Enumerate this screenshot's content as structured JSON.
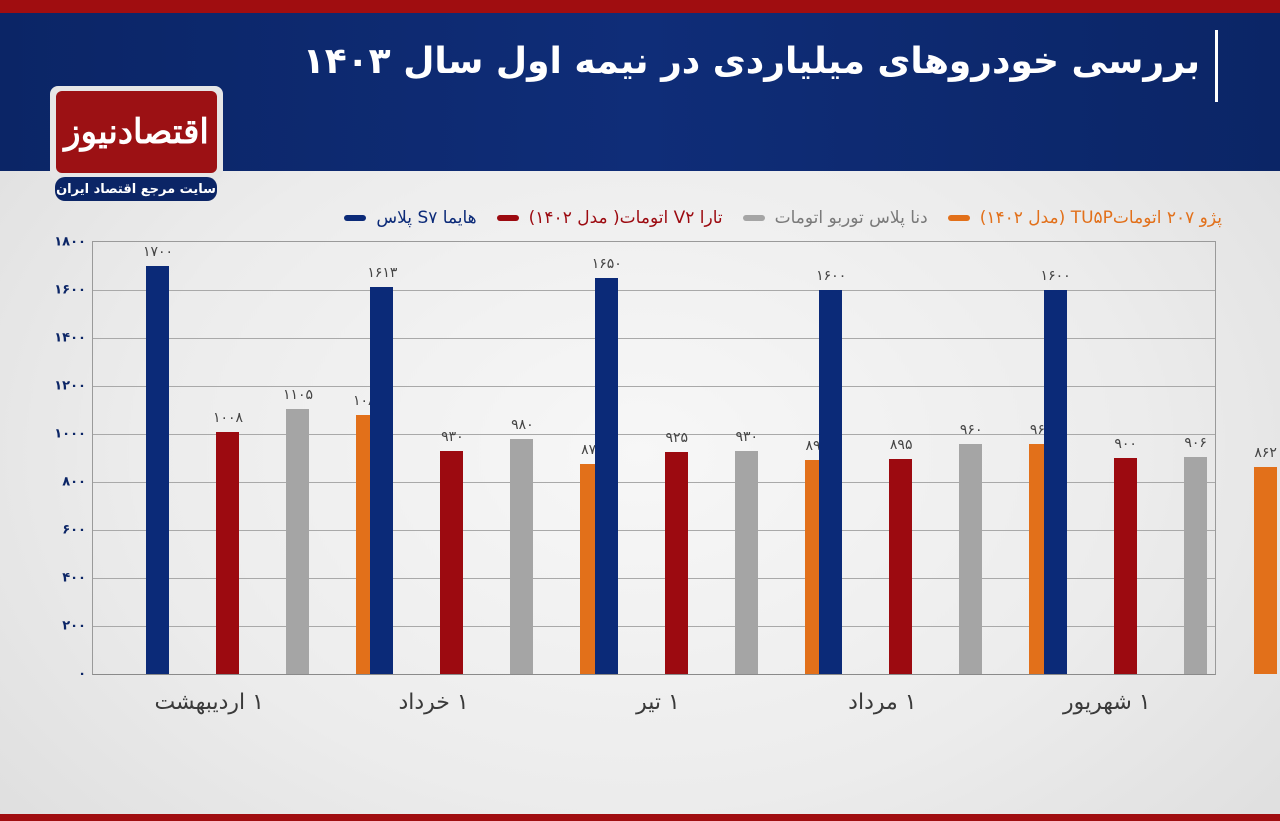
{
  "header": {
    "title": "بررسی خودروهای میلیاردی در نیمه اول سال ۱۴۰۳"
  },
  "logo": {
    "name": "اقتصادنیوز",
    "tagline": "سایت مرجع اقتصاد ایران"
  },
  "colors": {
    "header_bg": "#0f2d78",
    "accent_red": "#a00d10",
    "series": [
      "#0b2a78",
      "#9c0a10",
      "#a5a5a5",
      "#e2701a"
    ]
  },
  "chart_data": {
    "type": "bar",
    "title": "بررسی خودروهای میلیاردی در نیمه اول سال ۱۴۰۳",
    "xlabel": "",
    "ylabel": "",
    "categories": [
      "۱ اردیبهشت",
      "۱ خرداد",
      "۱ تیر",
      "۱ مرداد",
      "۱ شهریور"
    ],
    "series": [
      {
        "name": "هایما S۷ پلاس",
        "color": "#0b2a78",
        "values": [
          1700,
          1613,
          1650,
          1600,
          1600
        ],
        "labels": [
          "۱۷۰۰",
          "۱۶۱۳",
          "۱۶۵۰",
          "۱۶۰۰",
          "۱۶۰۰"
        ]
      },
      {
        "name": "تارا V۲ اتومات( مدل ۱۴۰۲)",
        "color": "#9c0a10",
        "values": [
          1008,
          930,
          925,
          895,
          900
        ],
        "labels": [
          "۱۰۰۸",
          "۹۳۰",
          "۹۲۵",
          "۸۹۵",
          "۹۰۰"
        ]
      },
      {
        "name": "دنا پلاس توربو اتومات",
        "color": "#a5a5a5",
        "values": [
          1105,
          980,
          930,
          960,
          906
        ],
        "labels": [
          "۱۱۰۵",
          "۹۸۰",
          "۹۳۰",
          "۹۶۰",
          "۹۰۶"
        ]
      },
      {
        "name": "پژو ۲۰۷ اتوماتTU۵P (مدل ۱۴۰۲)",
        "color": "#e2701a",
        "values": [
          1080,
          875,
          890,
          960,
          862
        ],
        "labels": [
          "۱۰۸۰",
          "۸۷۵",
          "۸۹۰",
          "۹۶۰",
          "۸۶۲"
        ]
      }
    ],
    "ylim": [
      0,
      1800
    ],
    "yticks": [
      0,
      200,
      400,
      600,
      800,
      1000,
      1200,
      1400,
      1600,
      1800
    ],
    "ytick_labels": [
      "۰",
      "۲۰۰",
      "۴۰۰",
      "۶۰۰",
      "۸۰۰",
      "۱۰۰۰",
      "۱۲۰۰",
      "۱۴۰۰",
      "۱۶۰۰",
      "۱۸۰۰"
    ],
    "grid": true,
    "legend_position": "top"
  }
}
